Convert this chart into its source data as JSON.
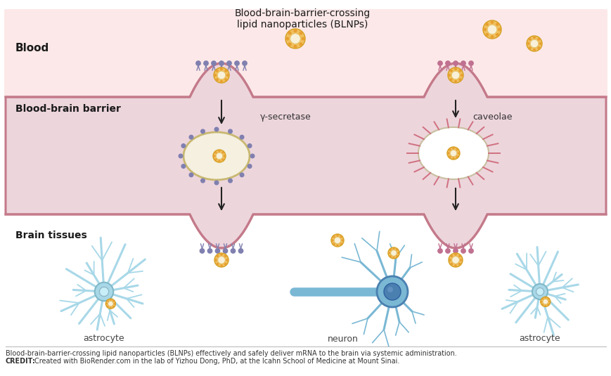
{
  "background_color": "#ffffff",
  "barrier_line_color": "#c47a8a",
  "barrier_fill_color": "#edd5dc",
  "blood_bg_color": "#fce8e8",
  "title_text": "Blood-brain-barrier-crossing\nlipid nanoparticles (BLNPs)",
  "blood_label": "Blood",
  "barrier_label": "Blood-brain barrier",
  "brain_label": "Brain tissues",
  "gamma_label": "γ-secretase",
  "caveolae_label": "caveolae",
  "astrocyte_label": "astrocyte",
  "neuron_label": "neuron",
  "caption_normal": "Blood-brain-barrier-crossing lipid nanoparticles (BLNPs) effectively and safely deliver mRNA to the brain via systemic administration. ",
  "caption_bold": "CREDIT:",
  "caption_after_bold": " Created with BioRender.com in the lab of Yizhou Dong, PhD, at the Icahn School of Medicine at Mount Sinai.",
  "nanoparticle_color": "#f0c060",
  "nanoparticle_edge": "#d4a020",
  "vesicle_fill": "#f5f0e0",
  "vesicle_edge": "#c8b870",
  "caveolae_spike_color": "#d07080",
  "phospholipid_color_left": "#8080b0",
  "phospholipid_color_right": "#c07090",
  "neuron_color": "#7ab8d4",
  "astrocyte_color": "#a8d8e8",
  "cell_body_dark": "#4a80b0",
  "arrow_color": "#222222"
}
